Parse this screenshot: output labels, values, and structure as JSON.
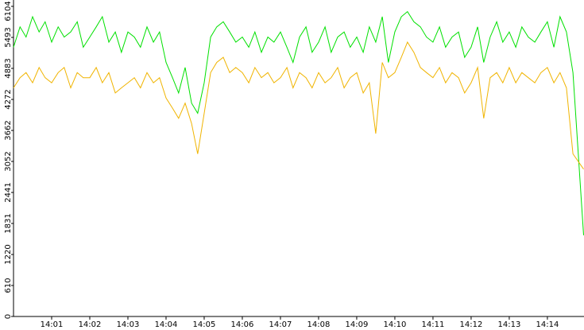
{
  "chart_data": {
    "type": "line",
    "x": [
      0,
      0.17,
      0.33,
      0.5,
      0.67,
      0.83,
      1,
      1.17,
      1.33,
      1.5,
      1.67,
      1.83,
      2,
      2.17,
      2.33,
      2.5,
      2.67,
      2.83,
      3,
      3.17,
      3.33,
      3.5,
      3.67,
      3.83,
      4,
      4.17,
      4.33,
      4.5,
      4.67,
      4.83,
      5,
      5.17,
      5.33,
      5.5,
      5.67,
      5.83,
      6,
      6.17,
      6.33,
      6.5,
      6.67,
      6.83,
      7,
      7.17,
      7.33,
      7.5,
      7.67,
      7.83,
      8,
      8.17,
      8.33,
      8.5,
      8.67,
      8.83,
      9,
      9.17,
      9.33,
      9.5,
      9.67,
      9.83,
      10,
      10.17,
      10.33,
      10.5,
      10.67,
      10.83,
      11,
      11.17,
      11.33,
      11.5,
      11.67,
      11.83,
      12,
      12.17,
      12.33,
      12.5,
      12.67,
      12.83,
      13,
      13.17,
      13.33,
      13.5,
      13.67,
      13.83,
      14,
      14.17,
      14.33,
      14.5,
      14.67,
      14.95
    ],
    "series": [
      {
        "color": "#00e000",
        "values": [
          5300,
          5700,
          5500,
          5900,
          5600,
          5800,
          5400,
          5700,
          5500,
          5600,
          5800,
          5300,
          5500,
          5700,
          5900,
          5400,
          5600,
          5200,
          5600,
          5500,
          5300,
          5700,
          5400,
          5600,
          5000,
          4700,
          4400,
          4900,
          4200,
          4000,
          4600,
          5500,
          5700,
          5800,
          5600,
          5400,
          5500,
          5300,
          5600,
          5200,
          5500,
          5400,
          5600,
          5300,
          5000,
          5500,
          5700,
          5200,
          5400,
          5700,
          5200,
          5500,
          5600,
          5300,
          5500,
          5200,
          5700,
          5400,
          5900,
          5000,
          5600,
          5900,
          6000,
          5800,
          5700,
          5500,
          5400,
          5700,
          5300,
          5500,
          5600,
          5100,
          5300,
          5700,
          5000,
          5500,
          5800,
          5400,
          5600,
          5300,
          5700,
          5500,
          5400,
          5600,
          5800,
          5300,
          5900,
          5600,
          4800,
          1600
        ]
      },
      {
        "color": "#f0b400",
        "values": [
          4500,
          4700,
          4800,
          4600,
          4900,
          4700,
          4600,
          4800,
          4900,
          4500,
          4800,
          4700,
          4700,
          4900,
          4600,
          4800,
          4400,
          4500,
          4600,
          4700,
          4500,
          4800,
          4600,
          4700,
          4300,
          4100,
          3900,
          4200,
          3800,
          3200,
          4000,
          4800,
          5000,
          5100,
          4800,
          4900,
          4800,
          4600,
          4900,
          4700,
          4800,
          4600,
          4700,
          4900,
          4500,
          4800,
          4700,
          4500,
          4800,
          4600,
          4700,
          4900,
          4500,
          4700,
          4800,
          4400,
          4600,
          3600,
          5000,
          4700,
          4800,
          5100,
          5400,
          5200,
          4900,
          4800,
          4700,
          4900,
          4600,
          4800,
          4700,
          4400,
          4600,
          4900,
          3900,
          4700,
          4800,
          4600,
          4900,
          4600,
          4800,
          4700,
          4600,
          4800,
          4900,
          4600,
          4800,
          4500,
          3200,
          2900
        ]
      }
    ],
    "xlim": [
      0,
      14.96
    ],
    "xticks": [
      {
        "value": 1,
        "label": "14:01"
      },
      {
        "value": 2,
        "label": "14:02"
      },
      {
        "value": 3,
        "label": "14:03"
      },
      {
        "value": 4,
        "label": "14:04"
      },
      {
        "value": 5,
        "label": "14:05"
      },
      {
        "value": 6,
        "label": "14:06"
      },
      {
        "value": 7,
        "label": "14:07"
      },
      {
        "value": 8,
        "label": "14:08"
      },
      {
        "value": 9,
        "label": "14:09"
      },
      {
        "value": 10,
        "label": "14:10"
      },
      {
        "value": 11,
        "label": "14:11"
      },
      {
        "value": 12,
        "label": "14:12"
      },
      {
        "value": 13,
        "label": "14:13"
      },
      {
        "value": 14,
        "label": "14:14"
      }
    ],
    "ylim": [
      0,
      6104
    ],
    "yticks": [
      0,
      610,
      1220,
      1831,
      2441,
      3052,
      3662,
      4272,
      4883,
      5493,
      6104
    ]
  }
}
